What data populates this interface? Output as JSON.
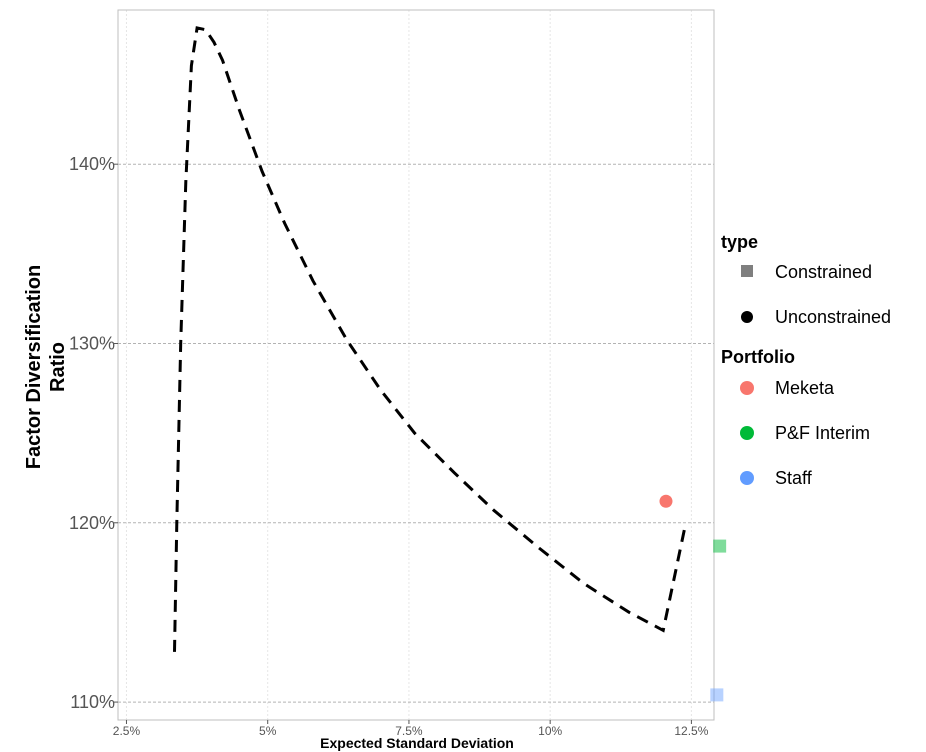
{
  "chart_data": {
    "type": "line",
    "title": "",
    "xlabel": "Expected Standard Deviation",
    "ylabel_lines": [
      "Factor Diversification",
      "Ratio"
    ],
    "x_ticks": [
      2.5,
      5,
      7.5,
      10,
      12.5
    ],
    "x_tick_labels": [
      "2.5%",
      "5%",
      "7.5%",
      "10%",
      "12.5%"
    ],
    "y_ticks": [
      110,
      120,
      130,
      140
    ],
    "y_tick_labels": [
      "110%",
      "120%",
      "130%",
      "140%"
    ],
    "xlim": [
      2.35,
      12.9
    ],
    "ylim": [
      109,
      148.6
    ],
    "grid": true,
    "legend_position": "right",
    "frontier": {
      "style": "dashed",
      "color": "#000000",
      "x": [
        3.35,
        3.39,
        3.46,
        3.55,
        3.65,
        3.75,
        3.9,
        4.05,
        4.2,
        4.5,
        4.9,
        5.3,
        5.8,
        6.4,
        7.0,
        7.6,
        8.3,
        9.0,
        9.8,
        10.6,
        11.4,
        12.0,
        12.4
      ],
      "y": [
        112.8,
        120.0,
        130.0,
        139.0,
        145.5,
        147.6,
        147.5,
        146.8,
        145.8,
        143.0,
        139.6,
        136.7,
        133.5,
        130.2,
        127.4,
        125.0,
        122.8,
        120.7,
        118.6,
        116.6,
        115.0,
        114.0,
        120.0
      ]
    },
    "points": [
      {
        "portfolio": "Meketa",
        "type": "Unconstrained",
        "x": 12.05,
        "y": 121.2,
        "color": "#F8766D",
        "shape": "circle",
        "opacity": 1
      },
      {
        "portfolio": "P&F Interim",
        "type": "Constrained",
        "x": 13.0,
        "y": 118.7,
        "color": "#00BA38",
        "shape": "square",
        "opacity": 0.5
      },
      {
        "portfolio": "Staff",
        "type": "Constrained",
        "x": 12.95,
        "y": 110.4,
        "color": "#619CFF",
        "shape": "square",
        "opacity": 0.45
      }
    ],
    "legend": {
      "type": {
        "title": "type",
        "entries": [
          {
            "label": "Constrained",
            "shape": "square",
            "color": "#7f7f7f"
          },
          {
            "label": "Unconstrained",
            "shape": "circle",
            "color": "#000000"
          }
        ]
      },
      "portfolio": {
        "title": "Portfolio",
        "entries": [
          {
            "label": "Meketa",
            "color": "#F8766D"
          },
          {
            "label": "P&F Interim",
            "color": "#00BA38"
          },
          {
            "label": "Staff",
            "color": "#619CFF"
          }
        ]
      }
    }
  }
}
